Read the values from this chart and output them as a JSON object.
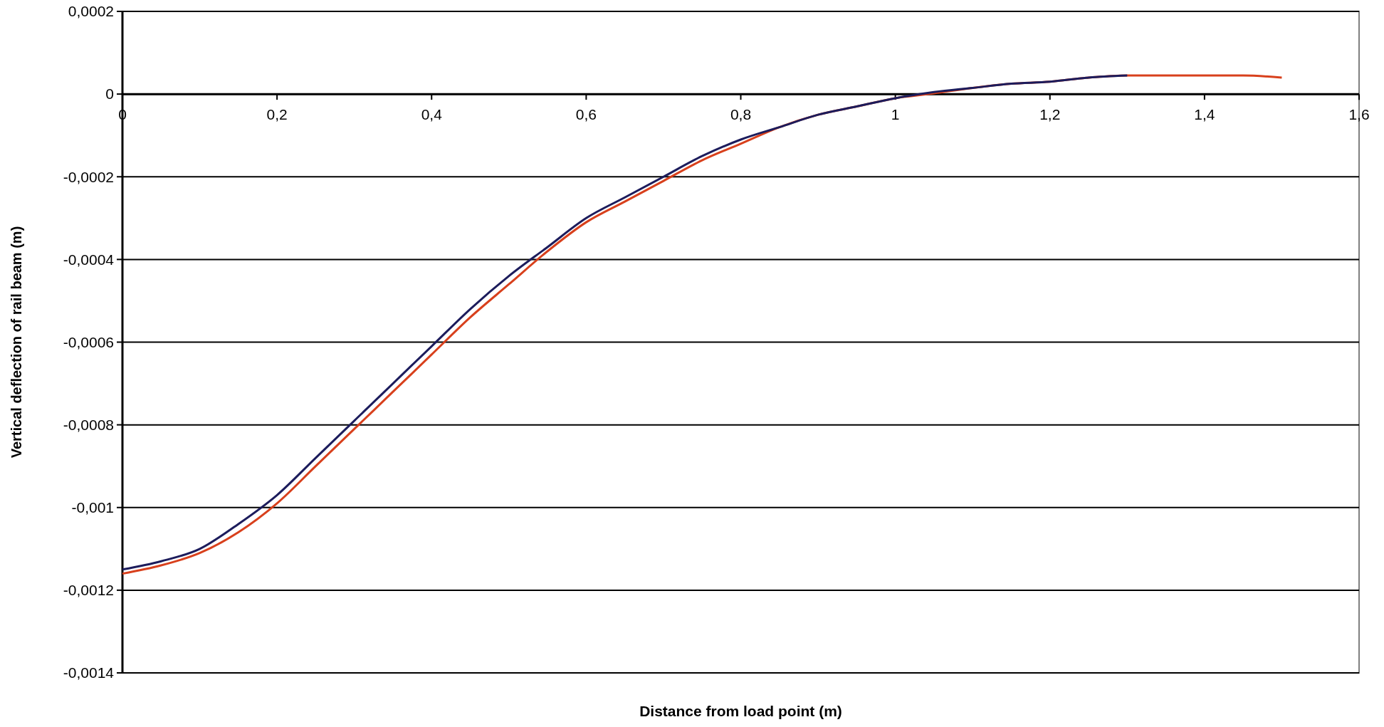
{
  "chart_data": {
    "type": "line",
    "xlabel": "Distance from load point (m)",
    "ylabel": "Vertical deflection of rail beam (m)",
    "xlim": [
      0,
      1.6
    ],
    "ylim": [
      -0.0014,
      0.0002
    ],
    "xticks": [
      0,
      {
        "value": 0.2,
        "label": "0,2"
      },
      {
        "value": 0.4,
        "label": "0,4"
      },
      {
        "value": 0.6,
        "label": "0,6"
      },
      {
        "value": 0.8,
        "label": "0,8"
      },
      1,
      {
        "value": 1.2,
        "label": "1,2"
      },
      {
        "value": 1.4,
        "label": "1,4"
      },
      {
        "value": 1.6,
        "label": "1,6"
      }
    ],
    "yticks": [
      {
        "value": -0.0014,
        "label": "-0,0014"
      },
      {
        "value": -0.0012,
        "label": "-0,0012"
      },
      {
        "value": -0.001,
        "label": "-0,001"
      },
      {
        "value": -0.0008,
        "label": "-0,0008"
      },
      {
        "value": -0.0006,
        "label": "-0,0006"
      },
      {
        "value": -0.0004,
        "label": "-0,0004"
      },
      {
        "value": -0.0002,
        "label": "-0,0002"
      },
      0,
      {
        "value": 0.0002,
        "label": "0,0002"
      }
    ],
    "grid": "y",
    "line_style": "solid",
    "series": [
      {
        "color": "#1c1c5c",
        "x": [
          0,
          0.05,
          0.1,
          0.15,
          0.2,
          0.25,
          0.3,
          0.35,
          0.4,
          0.45,
          0.5,
          0.55,
          0.6,
          0.65,
          0.7,
          0.75,
          0.8,
          0.85,
          0.9,
          0.95,
          1.0,
          1.05,
          1.1,
          1.15,
          1.2,
          1.25,
          1.3
        ],
        "values": [
          -0.00115,
          -0.00113,
          -0.0011,
          -0.00104,
          -0.00097,
          -0.00088,
          -0.00079,
          -0.0007,
          -0.00061,
          -0.00052,
          -0.00044,
          -0.00037,
          -0.0003,
          -0.00025,
          -0.0002,
          -0.00015,
          -0.00011,
          -8e-05,
          -5e-05,
          -3e-05,
          -1e-05,
          5e-06,
          1.5e-05,
          2.5e-05,
          3e-05,
          4e-05,
          4.5e-05
        ]
      },
      {
        "color": "#d8401c",
        "x": [
          0,
          0.05,
          0.1,
          0.15,
          0.2,
          0.25,
          0.3,
          0.35,
          0.4,
          0.45,
          0.5,
          0.55,
          0.6,
          0.65,
          0.7,
          0.75,
          0.8,
          0.85,
          0.9,
          0.95,
          1.0,
          1.05,
          1.1,
          1.15,
          1.2,
          1.25,
          1.3,
          1.35,
          1.4,
          1.45,
          1.5
        ],
        "values": [
          -0.00116,
          -0.00114,
          -0.00111,
          -0.00106,
          -0.00099,
          -0.0009,
          -0.00081,
          -0.00072,
          -0.00063,
          -0.00054,
          -0.00046,
          -0.00038,
          -0.00031,
          -0.00026,
          -0.00021,
          -0.00016,
          -0.00012,
          -8e-05,
          -5e-05,
          -3e-05,
          -1e-05,
          2e-06,
          1.5e-05,
          2.5e-05,
          3e-05,
          4e-05,
          4.5e-05,
          4.5e-05,
          4.5e-05,
          4.5e-05,
          4e-05
        ]
      }
    ]
  }
}
